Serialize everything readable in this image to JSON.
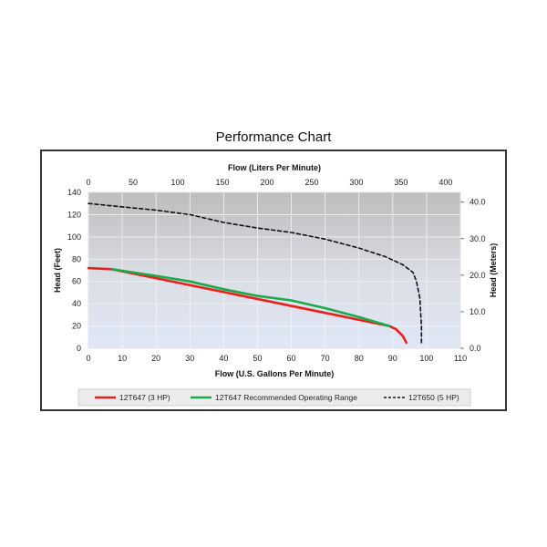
{
  "page": {
    "title": "Performance Chart"
  },
  "chart_data": {
    "type": "line",
    "title": "Performance Chart",
    "xlabel": "Flow (U.S. Gallons Per Minute)",
    "ylabel": "Head (Feet)",
    "x2label": "Flow (Liters Per Minute)",
    "y2label": "Head (Meters)",
    "xlim": [
      0,
      110
    ],
    "ylim": [
      0,
      140
    ],
    "x2lim": [
      0,
      416.4
    ],
    "y2lim": [
      0,
      42.67
    ],
    "x_ticks": [
      "0",
      "10",
      "20",
      "30",
      "40",
      "50",
      "60",
      "70",
      "80",
      "90",
      "100",
      "110"
    ],
    "y_ticks": [
      "0",
      "20",
      "40",
      "60",
      "80",
      "100",
      "120",
      "140"
    ],
    "x2_ticks": [
      "0",
      "50",
      "100",
      "150",
      "200",
      "250",
      "300",
      "350",
      "400"
    ],
    "y2_ticks": [
      "0.0",
      "10.0",
      "20.0",
      "30.0",
      "40.0"
    ],
    "grid": true,
    "legend_position": "bottom",
    "series": [
      {
        "name": "12T647 (3 HP)",
        "color": "#e8211c",
        "style": "solid",
        "points": [
          [
            0,
            72
          ],
          [
            7,
            71
          ],
          [
            89,
            20
          ],
          [
            91,
            17
          ],
          [
            93,
            11
          ],
          [
            94,
            5
          ]
        ]
      },
      {
        "name": "12T647 Recommended Operating Range",
        "color": "#1aaa4a",
        "style": "solid",
        "points": [
          [
            7,
            71
          ],
          [
            20,
            65
          ],
          [
            30,
            60
          ],
          [
            40,
            53
          ],
          [
            50,
            47
          ],
          [
            60,
            43
          ],
          [
            70,
            36
          ],
          [
            80,
            28
          ],
          [
            89,
            20
          ]
        ]
      },
      {
        "name": "12T650 (5 HP)",
        "color": "#111111",
        "style": "dashed",
        "points": [
          [
            0,
            130
          ],
          [
            10,
            127
          ],
          [
            20,
            124
          ],
          [
            30,
            120
          ],
          [
            40,
            113
          ],
          [
            50,
            108
          ],
          [
            60,
            104
          ],
          [
            70,
            98
          ],
          [
            80,
            90
          ],
          [
            88,
            82
          ],
          [
            93,
            75
          ],
          [
            96,
            68
          ],
          [
            97,
            60
          ],
          [
            98,
            45
          ],
          [
            98.5,
            20
          ],
          [
            98.5,
            3
          ]
        ]
      }
    ]
  }
}
